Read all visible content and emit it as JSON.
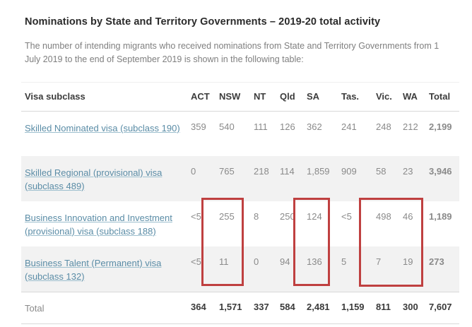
{
  "page": {
    "title": "Nominations by State and Territory Governments – 2019-20 total activity",
    "description": "The number of intending migrants who received nominations from State and Territory Governments from 1 July 2019 to the end of September 2019 is shown in the following table:"
  },
  "colors": {
    "link": "#5a8ca6",
    "highlight_box": "#bf4040",
    "row_alternate": "#f2f2f2"
  },
  "table": {
    "columns": [
      "Visa subclass",
      "ACT",
      "NSW",
      "NT",
      "Qld",
      "SA",
      "Tas.",
      "Vic.",
      "WA",
      "Total"
    ],
    "rows": [
      {
        "label": "Skilled Nominated visa (subclass 190)",
        "values": [
          "359",
          "540",
          "111",
          "126",
          "362",
          "241",
          "248",
          "212",
          "2,199"
        ]
      },
      {
        "label": "Skilled Regional (provisional) visa (subclass 489)",
        "values": [
          "0",
          "765",
          "218",
          "114",
          "1,859",
          "909",
          "58",
          "23",
          "3,946"
        ]
      },
      {
        "label": "Business Innovation and Investment (provisional) visa (subclass 188)",
        "values": [
          "<5",
          "255",
          "8",
          "250",
          "124",
          "<5",
          "498",
          "46",
          "1,189"
        ]
      },
      {
        "label": "Business Talent (Permanent) visa (subclass 132)",
        "values": [
          "<5",
          "11",
          "0",
          "94",
          "136",
          "5",
          "7",
          "19",
          "273"
        ]
      }
    ],
    "total_row": {
      "label": "Total",
      "values": [
        "364",
        "1,571",
        "337",
        "584",
        "2,481",
        "1,159",
        "811",
        "300",
        "7,607"
      ]
    }
  },
  "highlights": [
    {
      "name": "nsw-box",
      "columns": [
        "NSW"
      ],
      "highlighted_values": [
        "255",
        "11"
      ]
    },
    {
      "name": "sa-box",
      "columns": [
        "SA"
      ],
      "highlighted_values": [
        "124",
        "136"
      ]
    },
    {
      "name": "vic-wa-box",
      "columns": [
        "Vic.",
        "WA"
      ],
      "highlighted_values": [
        "498",
        "46",
        "7",
        "19"
      ]
    }
  ]
}
